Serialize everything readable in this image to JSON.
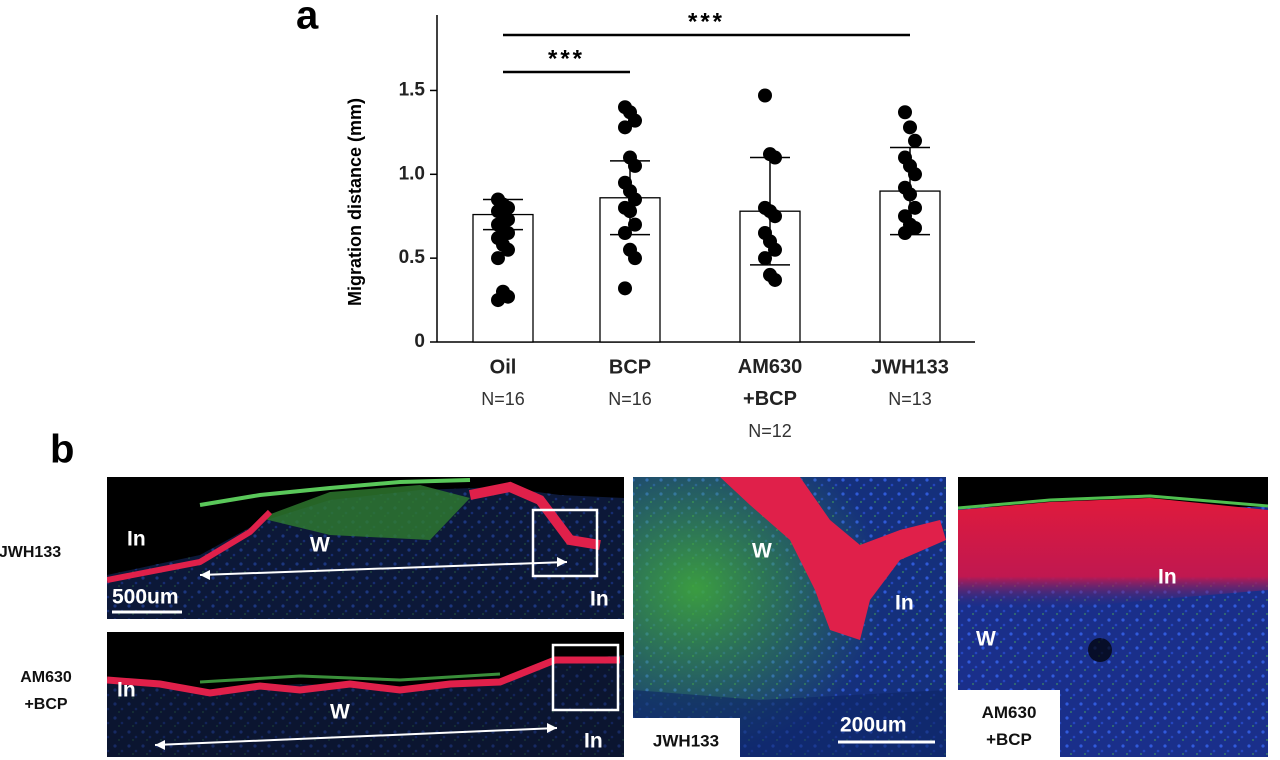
{
  "chart_data": {
    "type": "bar",
    "panel_label": "a",
    "categories": [
      "Oil",
      "BCP",
      "AM630\n+BCP",
      "JWH133"
    ],
    "n_labels": [
      "N=16",
      "N=16",
      "N=12",
      "N=13"
    ],
    "ylabel": "Migration distance (mm)",
    "values": [
      0.76,
      0.86,
      0.78,
      0.9
    ],
    "errors": [
      0.09,
      0.22,
      0.32,
      0.26
    ],
    "points": [
      [
        0.85,
        0.82,
        0.8,
        0.78,
        0.76,
        0.73,
        0.7,
        0.68,
        0.65,
        0.62,
        0.58,
        0.55,
        0.5,
        0.3,
        0.27,
        0.25
      ],
      [
        1.4,
        1.37,
        1.32,
        1.28,
        1.1,
        1.05,
        0.95,
        0.9,
        0.85,
        0.8,
        0.78,
        0.7,
        0.65,
        0.55,
        0.5,
        0.32
      ],
      [
        1.47,
        1.12,
        1.1,
        0.8,
        0.78,
        0.75,
        0.65,
        0.6,
        0.55,
        0.5,
        0.4,
        0.37
      ],
      [
        1.37,
        1.28,
        1.2,
        1.1,
        1.05,
        1.0,
        0.92,
        0.88,
        0.8,
        0.75,
        0.7,
        0.68,
        0.65
      ]
    ],
    "ylim": [
      0,
      1.95
    ],
    "yticks": [
      0,
      0.5,
      {
        "value": 1,
        "label": "1.0"
      },
      1.5
    ],
    "bar_color": "#ffffff",
    "edge_color": "#000000",
    "point_color": "#000000",
    "significance": [
      {
        "label": "***",
        "from": 0,
        "to": 1
      },
      {
        "label": "***",
        "from": 0,
        "to": 3
      }
    ]
  },
  "panel_b": {
    "label": "b",
    "row_labels": [
      "JWH133",
      "AM630\n+BCP"
    ],
    "images": [
      {
        "labels": [
          "In",
          "W",
          "In"
        ],
        "scale_bar": "500um"
      },
      {
        "labels": [
          "In",
          "W",
          "In"
        ]
      },
      {
        "labels": [
          "W",
          "In"
        ],
        "scale_bar": "200um",
        "caption": "JWH133"
      },
      {
        "labels": [
          "In",
          "W"
        ],
        "caption": "AM630\n+BCP"
      }
    ]
  }
}
